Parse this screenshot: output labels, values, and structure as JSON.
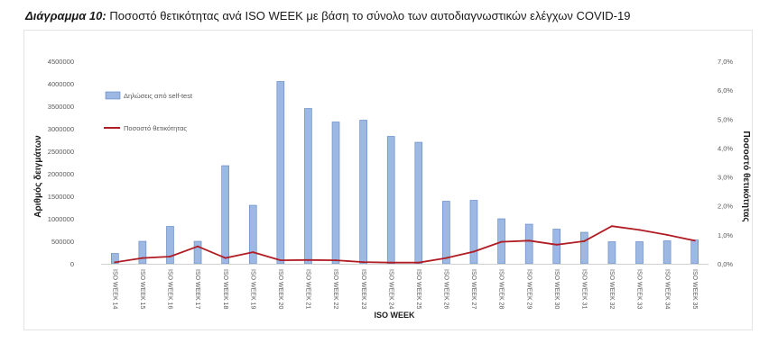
{
  "caption": {
    "label": "Διάγραμμα 10:",
    "text": "Ποσοστό θετικότητας ανά ISO WEEK με βάση το σύνολο των αυτοδιαγνωστικών ελέγχων COVID-19"
  },
  "chart_data": {
    "type": "bar",
    "title": "",
    "xlabel": "ISO WEEK",
    "ylabel": "Αριθμός δειγμάτων",
    "y2label": "Ποσοστό θετικότητας",
    "ylim": [
      0,
      4500000
    ],
    "y2lim": [
      0,
      7.0
    ],
    "yticks": [
      "0",
      "500000",
      "1000000",
      "1500000",
      "2000000",
      "2500000",
      "3000000",
      "3500000",
      "4000000",
      "4500000"
    ],
    "y2ticks": [
      "0,0%",
      "1,0%",
      "2,0%",
      "3,0%",
      "4,0%",
      "5,0%",
      "6,0%",
      "7,0%"
    ],
    "grid": false,
    "legend_position": "top-left",
    "colors": {
      "bar": "#9db8e2",
      "bar_edge": "#5b84c3",
      "line": "#b11d24"
    },
    "categories": [
      "ISO WEEK 14",
      "ISO WEEK 15",
      "ISO WEEK 16",
      "ISO WEEK 17",
      "ISO WEEK 18",
      "ISO WEEK 19",
      "ISO WEEK 20",
      "ISO WEEK 21",
      "ISO WEEK 22",
      "ISO WEEK 23",
      "ISO WEEK 24",
      "ISO WEEK 25",
      "ISO WEEK 26",
      "ISO WEEK 27",
      "ISO WEEK 28",
      "ISO WEEK 29",
      "ISO WEEK 30",
      "ISO WEEK 31",
      "ISO WEEK 32",
      "ISO WEEK 33",
      "ISO WEEK 34",
      "ISO WEEK 35"
    ],
    "series": [
      {
        "name": "Δηλώσεις από self-test",
        "type": "bar",
        "axis": "left",
        "values": [
          230000,
          500000,
          830000,
          500000,
          2180000,
          1300000,
          4050000,
          3450000,
          3150000,
          3190000,
          2830000,
          2700000,
          1390000,
          1410000,
          1000000,
          880000,
          770000,
          700000,
          490000,
          490000,
          510000,
          530000
        ]
      },
      {
        "name": "Ποσοστό θετικότητας",
        "type": "line",
        "axis": "right",
        "values": [
          0.05,
          0.2,
          0.25,
          0.6,
          0.2,
          0.4,
          0.12,
          0.13,
          0.12,
          0.06,
          0.04,
          0.04,
          0.2,
          0.42,
          0.76,
          0.8,
          0.66,
          0.78,
          1.3,
          1.17,
          1.0,
          0.8
        ]
      }
    ]
  }
}
